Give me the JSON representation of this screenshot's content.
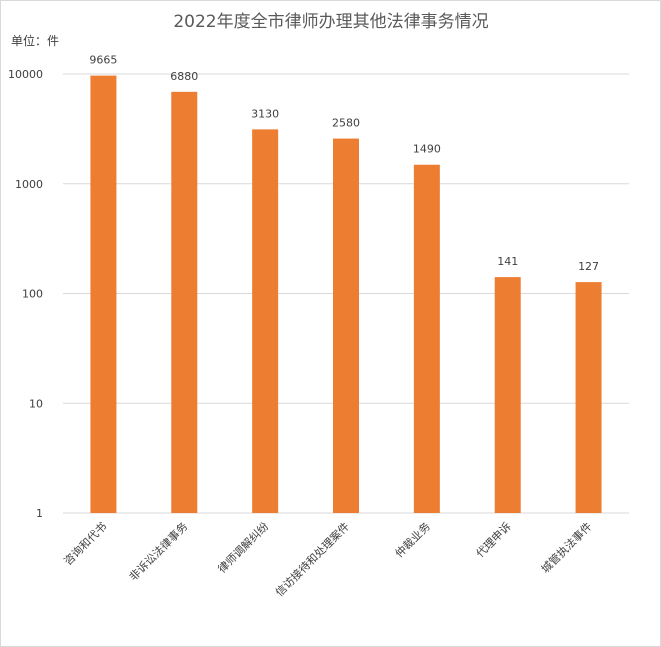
{
  "chart_data": {
    "type": "bar",
    "title": "2022年度全市律师办理其他法律事务情况",
    "unit_label": "单位：件",
    "yscale": "log",
    "ylim": [
      1,
      10000
    ],
    "yticks": [
      "1",
      "10",
      "100",
      "1000",
      "10000"
    ],
    "grid": true,
    "categories": [
      "咨询和代书",
      "非诉讼法律事务",
      "律师调解纠纷",
      "信访接待和处理案件",
      "仲裁业务",
      "代理申诉",
      "城管执法事件"
    ],
    "values": [
      9665,
      6880,
      3130,
      2580,
      1490,
      141,
      127
    ],
    "labels": [
      "9665",
      "6880",
      "3130",
      "2580",
      "1490",
      "141",
      "127"
    ],
    "bar_color": "#ED7D31"
  }
}
